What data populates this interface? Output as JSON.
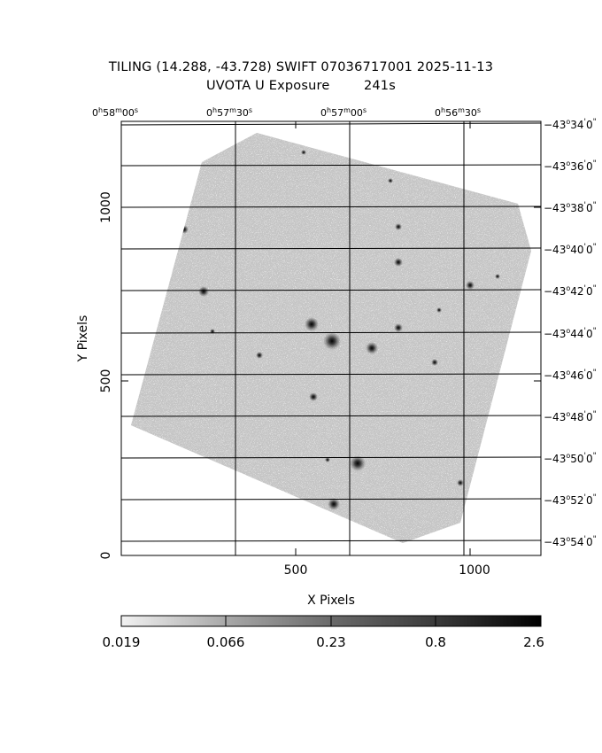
{
  "header": {
    "title_line1": "TILING (14.288, -43.728) SWIFT 07036717001 2025-11-13",
    "title_line2": "UVOTA U Exposure        241s"
  },
  "ra_labels": [
    {
      "h": "0",
      "m": "58",
      "s": "00"
    },
    {
      "h": "0",
      "m": "57",
      "s": "30"
    },
    {
      "h": "0",
      "m": "57",
      "s": "00"
    },
    {
      "h": "0",
      "m": "56",
      "s": "30"
    }
  ],
  "dec_labels": [
    {
      "deg": "−43",
      "min": "34",
      "sec": "0"
    },
    {
      "deg": "−43",
      "min": "36",
      "sec": "0"
    },
    {
      "deg": "−43",
      "min": "38",
      "sec": "0"
    },
    {
      "deg": "−43",
      "min": "40",
      "sec": "0"
    },
    {
      "deg": "−43",
      "min": "42",
      "sec": "0"
    },
    {
      "deg": "−43",
      "min": "44",
      "sec": "0"
    },
    {
      "deg": "−43",
      "min": "46",
      "sec": "0"
    },
    {
      "deg": "−43",
      "min": "48",
      "sec": "0"
    },
    {
      "deg": "−43",
      "min": "50",
      "sec": "0"
    },
    {
      "deg": "−43",
      "min": "52",
      "sec": "0"
    },
    {
      "deg": "−43",
      "min": "54",
      "sec": "0"
    }
  ],
  "x_axis": {
    "label": "X Pixels",
    "ticks": [
      "500",
      "1000"
    ]
  },
  "y_axis": {
    "label": "Y Pixels",
    "ticks": [
      "0",
      "500",
      "1000"
    ]
  },
  "colorbar": {
    "labels": [
      "0.019",
      "0.066",
      "0.23",
      "0.8",
      "2.6"
    ]
  }
}
